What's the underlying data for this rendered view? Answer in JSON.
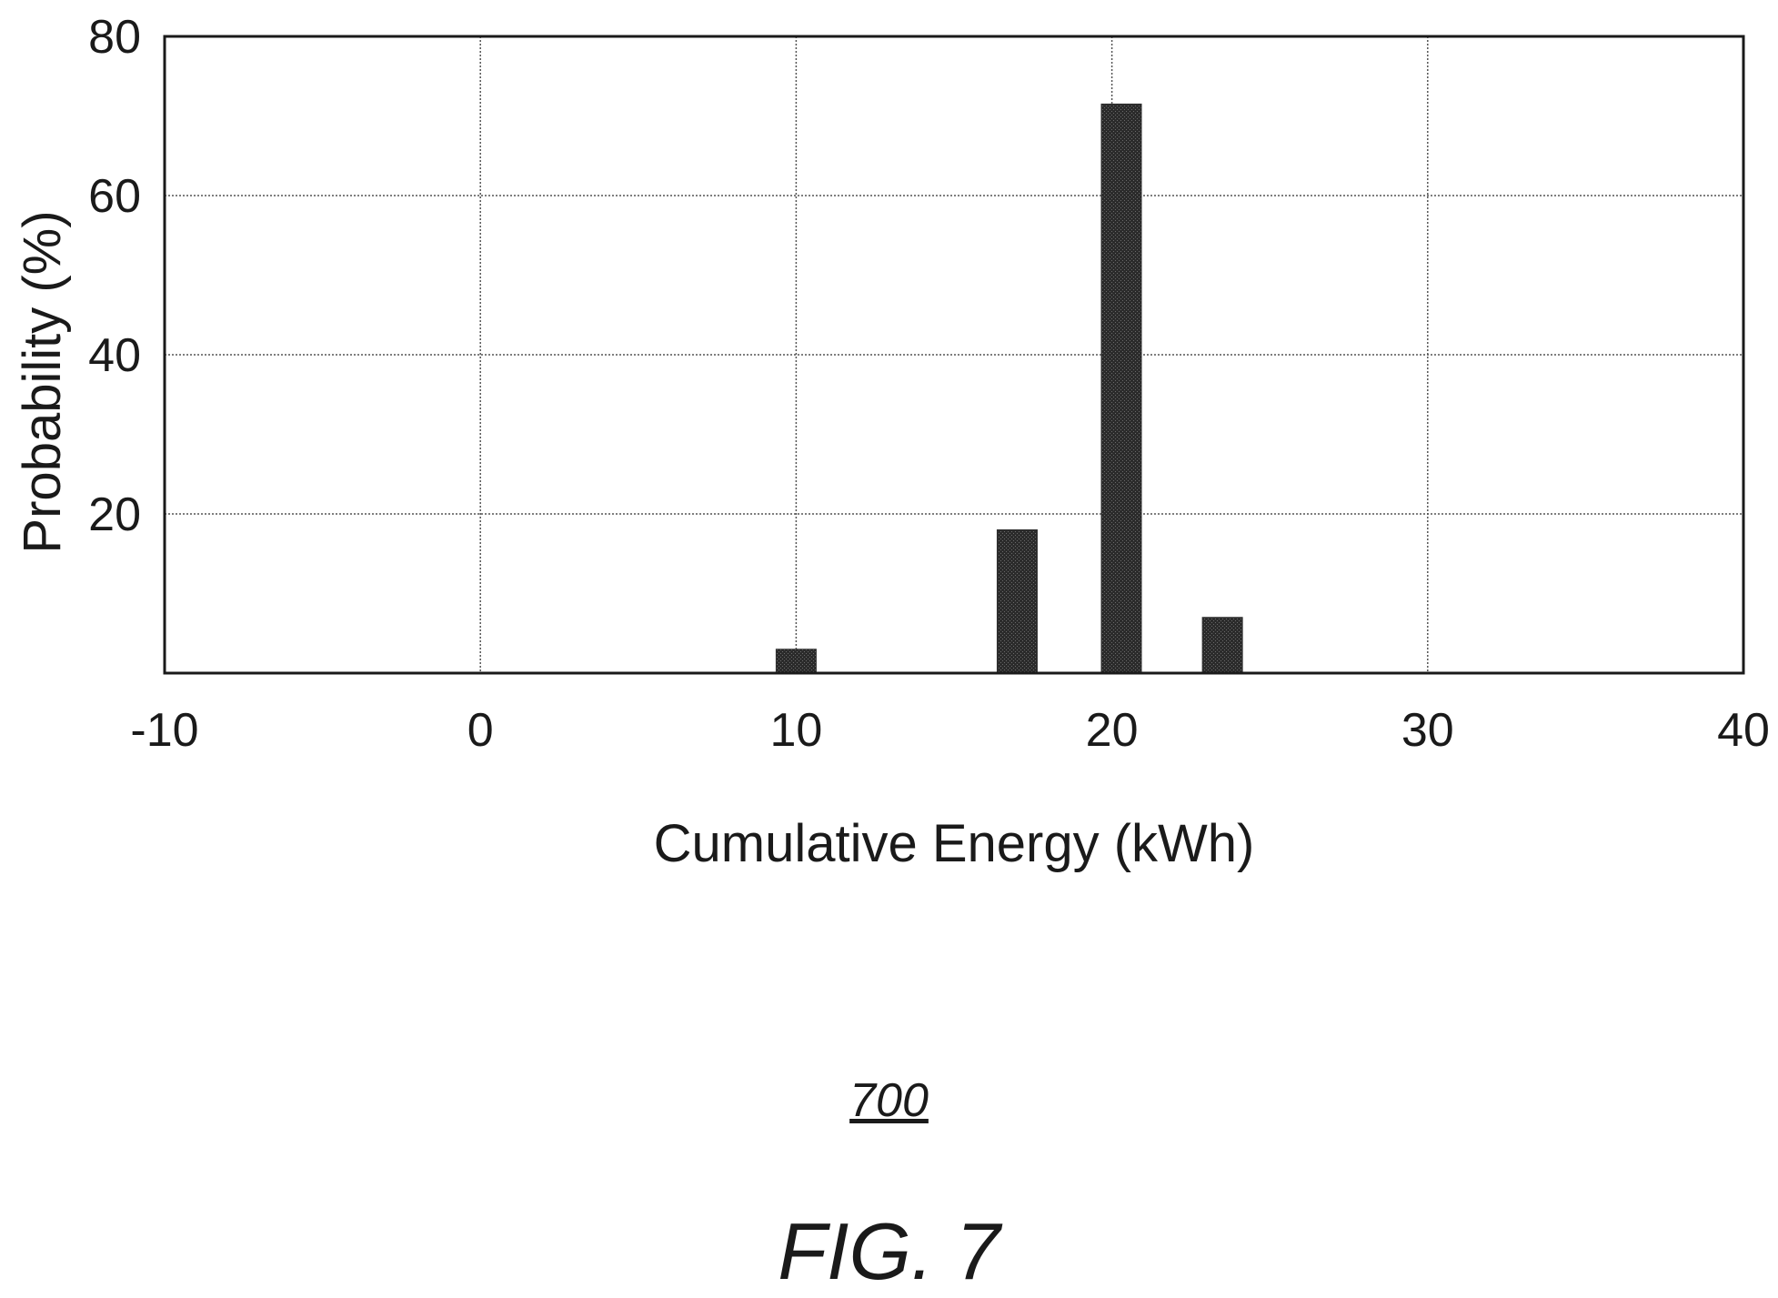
{
  "figure": {
    "reference_number": "700",
    "caption": "FIG. 7"
  },
  "chart_data": {
    "type": "bar",
    "xlabel": "Cumulative Energy (kWh)",
    "ylabel": "Probability (%)",
    "xlim": [
      -10,
      40
    ],
    "ylim": [
      0,
      80
    ],
    "x_ticks": [
      "-10",
      "0",
      "10",
      "20",
      "30",
      "40"
    ],
    "y_ticks": [
      "20",
      "40",
      "60",
      "80"
    ],
    "grid": true,
    "legend": "none",
    "bar_color": "#2e2e2e",
    "bars": [
      {
        "x": 10,
        "value": 3
      },
      {
        "x": 17,
        "value": 18
      },
      {
        "x": 20.3,
        "value": 71.5
      },
      {
        "x": 23.5,
        "value": 7
      }
    ]
  }
}
